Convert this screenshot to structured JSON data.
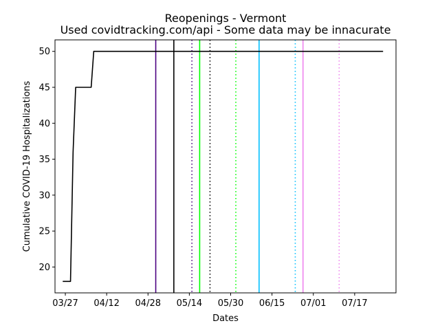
{
  "chart_data": {
    "type": "line",
    "title": "Reopenings - Vermont",
    "subtitle": "Used covidtracking.com/api - Some data may be innacurate",
    "xlabel": "Dates",
    "ylabel": "Cumulative COVID-19 Hospitalizations",
    "x_axis_type": "date",
    "date_year": 2020,
    "xlim": [
      "2020-03-23",
      "2020-08-02"
    ],
    "ylim": [
      16.4,
      51.6
    ],
    "x_ticks": [
      {
        "date": "2020-03-27",
        "label": "03/27"
      },
      {
        "date": "2020-04-12",
        "label": "04/12"
      },
      {
        "date": "2020-04-28",
        "label": "04/28"
      },
      {
        "date": "2020-05-14",
        "label": "05/14"
      },
      {
        "date": "2020-05-30",
        "label": "05/30"
      },
      {
        "date": "2020-06-15",
        "label": "06/15"
      },
      {
        "date": "2020-07-01",
        "label": "07/01"
      },
      {
        "date": "2020-07-17",
        "label": "07/17"
      }
    ],
    "y_ticks": [
      20,
      25,
      30,
      35,
      40,
      45,
      50
    ],
    "grid": false,
    "series": [
      {
        "color": "#000000",
        "points": [
          {
            "x": "2020-03-26",
            "y": 18
          },
          {
            "x": "2020-03-29",
            "y": 18
          },
          {
            "x": "2020-03-30",
            "y": 36
          },
          {
            "x": "2020-03-31",
            "y": 45
          },
          {
            "x": "2020-04-06",
            "y": 45
          },
          {
            "x": "2020-04-07",
            "y": 50
          },
          {
            "x": "2020-07-28",
            "y": 50
          }
        ]
      }
    ],
    "vertical_lines": [
      {
        "x": "2020-05-01",
        "color": "#4b0082",
        "style": "solid"
      },
      {
        "x": "2020-05-08",
        "color": "#000000",
        "style": "solid"
      },
      {
        "x": "2020-05-15",
        "color": "#4b0082",
        "style": "dotted"
      },
      {
        "x": "2020-05-22",
        "color": "#000000",
        "style": "dotted"
      },
      {
        "x": "2020-05-18",
        "color": "#00ff00",
        "style": "solid"
      },
      {
        "x": "2020-06-01",
        "color": "#00ff00",
        "style": "dotted"
      },
      {
        "x": "2020-06-10",
        "color": "#00bfff",
        "style": "solid"
      },
      {
        "x": "2020-06-24",
        "color": "#00bfff",
        "style": "dotted"
      },
      {
        "x": "2020-06-27",
        "color": "#ee82ee",
        "style": "solid"
      },
      {
        "x": "2020-07-11",
        "color": "#ee82ee",
        "style": "dotted"
      }
    ]
  }
}
